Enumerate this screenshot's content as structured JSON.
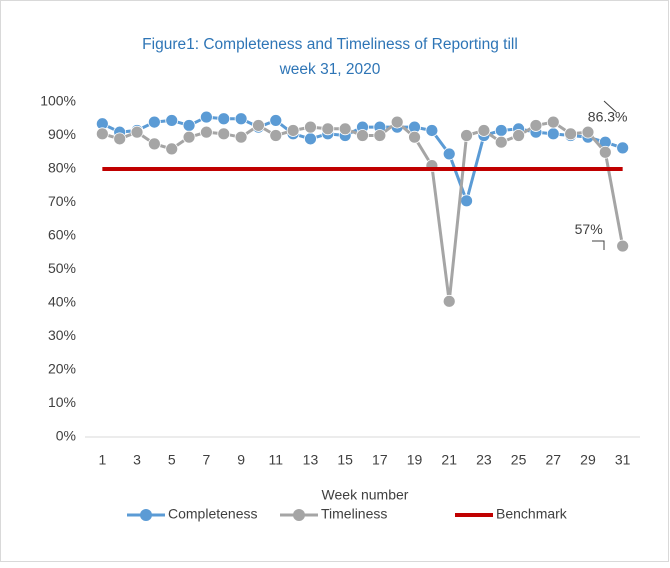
{
  "chart_data": {
    "type": "line",
    "title": "Figure1: Completeness and Timeliness of Reporting till",
    "subtitle": "week 31, 2020",
    "x_label": "Week number",
    "x": [
      1,
      2,
      3,
      4,
      5,
      6,
      7,
      8,
      9,
      10,
      11,
      12,
      13,
      14,
      15,
      16,
      17,
      18,
      19,
      20,
      21,
      22,
      23,
      24,
      25,
      26,
      27,
      28,
      29,
      30,
      31
    ],
    "xlim": [
      0,
      32
    ],
    "xticks": [
      1,
      3,
      5,
      7,
      9,
      11,
      13,
      15,
      17,
      19,
      21,
      23,
      25,
      27,
      29,
      31
    ],
    "ylim": [
      0,
      100
    ],
    "yticks": [
      {
        "value": 0,
        "label": "0%"
      },
      {
        "value": 10,
        "label": "10%"
      },
      {
        "value": 20,
        "label": "20%"
      },
      {
        "value": 30,
        "label": "30%"
      },
      {
        "value": 40,
        "label": "40%"
      },
      {
        "value": 50,
        "label": "50%"
      },
      {
        "value": 60,
        "label": "60%"
      },
      {
        "value": 70,
        "label": "70%"
      },
      {
        "value": 80,
        "label": "80%"
      },
      {
        "value": 90,
        "label": "90%"
      },
      {
        "value": 100,
        "label": "100%"
      }
    ],
    "grid": false,
    "legend": "bottom",
    "series": [
      {
        "name": "Completeness",
        "color": "#5b9bd5",
        "marker": true,
        "values": [
          93.5,
          91,
          91.5,
          94,
          94.5,
          93,
          95.5,
          95,
          95,
          92.5,
          94.5,
          90.5,
          89,
          90.5,
          90,
          92.5,
          92.5,
          92.5,
          92.5,
          91.5,
          84.5,
          70.5,
          90,
          91.5,
          92,
          91,
          90.5,
          90,
          89.5,
          88,
          86.3
        ],
        "value_labels": [
          null,
          null,
          null,
          null,
          null,
          null,
          null,
          null,
          null,
          null,
          null,
          null,
          null,
          null,
          null,
          null,
          null,
          null,
          null,
          null,
          null,
          null,
          null,
          null,
          null,
          null,
          null,
          null,
          null,
          null,
          "86.3%"
        ]
      },
      {
        "name": "Timeliness",
        "color": "#a5a5a5",
        "marker": true,
        "values": [
          90.5,
          89,
          91,
          87.5,
          86,
          89.5,
          91,
          90.5,
          89.5,
          93,
          90,
          91.5,
          92.5,
          92,
          92,
          90,
          90,
          94,
          89.5,
          81,
          40.5,
          90,
          91.5,
          88,
          90,
          93,
          94,
          90.5,
          91,
          85,
          57
        ],
        "value_labels": [
          null,
          null,
          null,
          null,
          null,
          null,
          null,
          null,
          null,
          null,
          null,
          null,
          null,
          null,
          null,
          null,
          null,
          null,
          null,
          null,
          null,
          null,
          null,
          null,
          null,
          null,
          null,
          null,
          null,
          null,
          "57%"
        ]
      },
      {
        "name": "Benchmark",
        "color": "#c00000",
        "marker": false,
        "values": [
          80,
          80,
          80,
          80,
          80,
          80,
          80,
          80,
          80,
          80,
          80,
          80,
          80,
          80,
          80,
          80,
          80,
          80,
          80,
          80,
          80,
          80,
          80,
          80,
          80,
          80,
          80,
          80,
          80,
          80,
          80
        ]
      }
    ]
  }
}
